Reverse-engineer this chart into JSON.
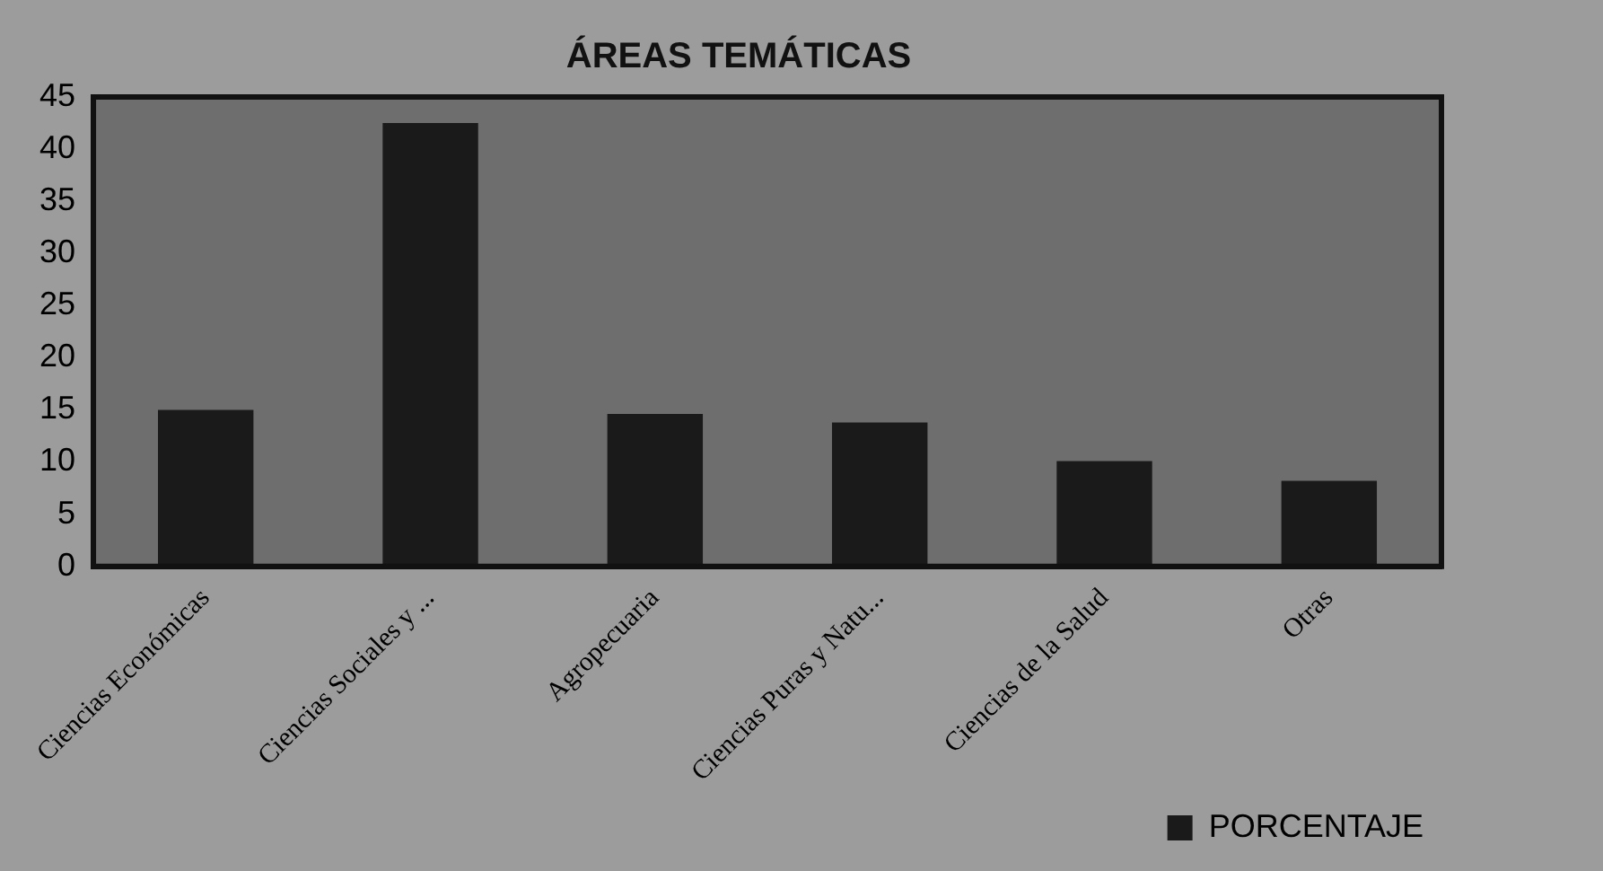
{
  "chart_data": {
    "type": "bar",
    "title": "ÁREAS TEMÁTICAS",
    "categories": [
      "Ciencias Económicas",
      "Ciencias Sociales y ...",
      "Agropecuaria",
      "Ciencias Puras y Natu...",
      "Ciencias de la Salud",
      "Otras"
    ],
    "series": [
      {
        "name": "PORCENTAJE",
        "color": "#1a1a1a",
        "values": [
          15,
          42.5,
          14.6,
          13.8,
          10.1,
          8.2
        ]
      }
    ],
    "ylim": [
      0,
      45
    ],
    "yticks": [
      0,
      5,
      10,
      15,
      20,
      25,
      30,
      35,
      40,
      45
    ],
    "grid": false,
    "legend": "bottom right"
  }
}
